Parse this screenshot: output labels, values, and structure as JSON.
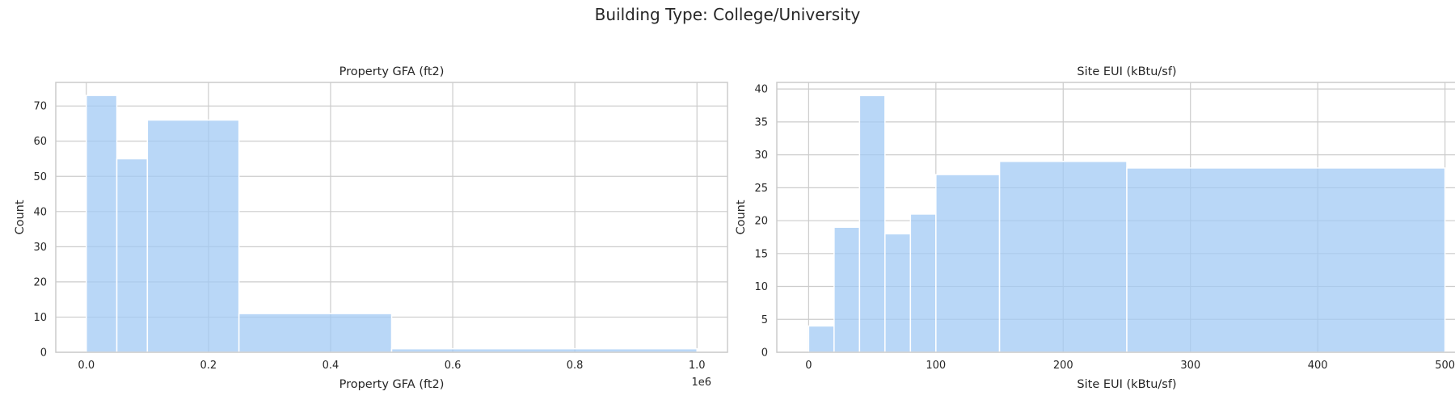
{
  "figure": {
    "suptitle": "Building Type: College/University"
  },
  "chart_data": [
    {
      "type": "bar",
      "subtype": "histogram",
      "title": "Property GFA (ft2)",
      "xlabel": "Property GFA (ft2)",
      "ylabel": "Count",
      "x_offset_label": "1e6",
      "xlim": [
        -0.05,
        1.05
      ],
      "ylim": [
        0,
        76.7
      ],
      "xticks": [
        0.0,
        0.2,
        0.4,
        0.6,
        0.8,
        1.0
      ],
      "xtick_labels": [
        "0.0",
        "0.2",
        "0.4",
        "0.6",
        "0.8",
        "1.0"
      ],
      "yticks": [
        0,
        10,
        20,
        30,
        40,
        50,
        60,
        70
      ],
      "ytick_labels": [
        "0",
        "10",
        "20",
        "30",
        "40",
        "50",
        "60",
        "70"
      ],
      "grid": true,
      "bins": [
        {
          "x0": 0.0,
          "x1": 0.05,
          "count": 73
        },
        {
          "x0": 0.05,
          "x1": 0.1,
          "count": 55
        },
        {
          "x0": 0.1,
          "x1": 0.25,
          "count": 66
        },
        {
          "x0": 0.25,
          "x1": 0.5,
          "count": 11
        },
        {
          "x0": 0.5,
          "x1": 1.0,
          "count": 1
        }
      ]
    },
    {
      "type": "bar",
      "subtype": "histogram",
      "title": "Site EUI (kBtu/sf)",
      "xlabel": "Site EUI (kBtu/sf)",
      "ylabel": "Count",
      "xlim": [
        -25,
        525
      ],
      "ylim": [
        0,
        41
      ],
      "xticks": [
        0,
        100,
        200,
        300,
        400,
        500
      ],
      "xtick_labels": [
        "0",
        "100",
        "200",
        "300",
        "400",
        "500"
      ],
      "yticks": [
        0,
        5,
        10,
        15,
        20,
        25,
        30,
        35,
        40
      ],
      "ytick_labels": [
        "0",
        "5",
        "10",
        "15",
        "20",
        "25",
        "30",
        "35",
        "40"
      ],
      "grid": true,
      "bins": [
        {
          "x0": 0,
          "x1": 20,
          "count": 4
        },
        {
          "x0": 20,
          "x1": 40,
          "count": 19
        },
        {
          "x0": 40,
          "x1": 60,
          "count": 39
        },
        {
          "x0": 60,
          "x1": 80,
          "count": 18
        },
        {
          "x0": 80,
          "x1": 100,
          "count": 21
        },
        {
          "x0": 100,
          "x1": 150,
          "count": 27
        },
        {
          "x0": 150,
          "x1": 250,
          "count": 29
        },
        {
          "x0": 250,
          "x1": 500,
          "count": 28
        }
      ]
    }
  ]
}
